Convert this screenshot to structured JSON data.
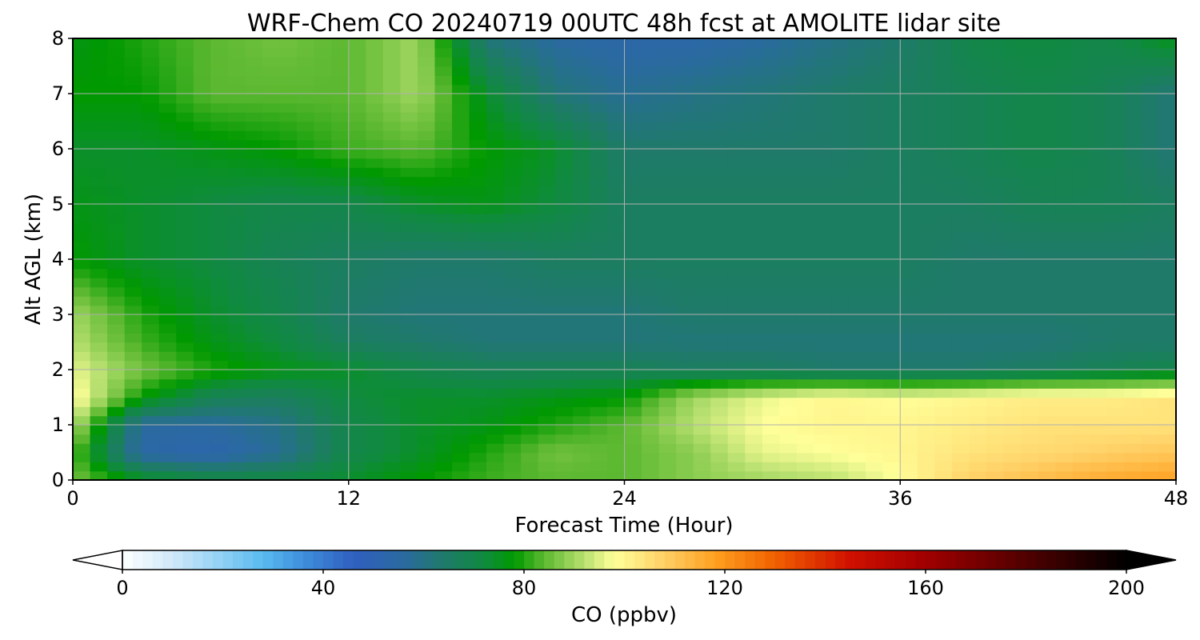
{
  "chart_data": {
    "type": "heatmap",
    "title": "WRF-Chem CO  20240719 00UTC 48h fcst at AMOLITE lidar site",
    "xlabel": "Forecast Time (Hour)",
    "ylabel": "Alt AGL (km)",
    "xlim": [
      0,
      48
    ],
    "ylim": [
      0,
      8
    ],
    "xticks": [
      0,
      12,
      24,
      36,
      48
    ],
    "yticks": [
      0,
      1,
      2,
      3,
      4,
      5,
      6,
      7,
      8
    ],
    "grid": true,
    "x": [
      0,
      3,
      6,
      9,
      12,
      15,
      18,
      21,
      24,
      27,
      30,
      33,
      36,
      39,
      42,
      45,
      48
    ],
    "y": [
      0,
      0.5,
      1,
      1.5,
      2,
      2.5,
      3,
      4,
      5,
      6,
      7,
      8
    ],
    "z": [
      [
        86,
        76,
        72,
        72,
        74,
        78,
        82,
        84,
        84,
        88,
        90,
        92,
        98,
        108,
        112,
        116,
        118
      ],
      [
        84,
        54,
        52,
        58,
        70,
        74,
        80,
        86,
        84,
        88,
        96,
        98,
        100,
        104,
        106,
        108,
        110
      ],
      [
        92,
        56,
        56,
        60,
        70,
        74,
        76,
        80,
        84,
        92,
        98,
        100,
        100,
        102,
        104,
        104,
        104
      ],
      [
        100,
        78,
        68,
        66,
        72,
        74,
        74,
        76,
        78,
        90,
        96,
        100,
        98,
        100,
        102,
        102,
        104
      ],
      [
        96,
        86,
        80,
        76,
        74,
        70,
        68,
        68,
        68,
        66,
        66,
        64,
        64,
        64,
        66,
        68,
        70
      ],
      [
        92,
        82,
        76,
        72,
        66,
        64,
        62,
        62,
        62,
        62,
        62,
        62,
        62,
        62,
        62,
        64,
        64
      ],
      [
        90,
        80,
        74,
        70,
        64,
        62,
        62,
        62,
        62,
        64,
        64,
        64,
        64,
        64,
        64,
        64,
        64
      ],
      [
        78,
        74,
        72,
        68,
        66,
        64,
        64,
        66,
        66,
        66,
        66,
        66,
        66,
        64,
        64,
        64,
        64
      ],
      [
        76,
        74,
        72,
        70,
        70,
        74,
        76,
        72,
        66,
        66,
        66,
        66,
        66,
        66,
        68,
        68,
        66
      ],
      [
        74,
        74,
        76,
        78,
        82,
        84,
        78,
        74,
        64,
        64,
        64,
        64,
        66,
        68,
        70,
        68,
        62
      ],
      [
        78,
        78,
        84,
        84,
        84,
        90,
        74,
        62,
        58,
        60,
        62,
        64,
        66,
        68,
        70,
        68,
        62
      ],
      [
        76,
        80,
        84,
        86,
        84,
        90,
        62,
        56,
        54,
        54,
        56,
        60,
        64,
        70,
        72,
        70,
        76
      ]
    ],
    "colorbar": {
      "label": "CO  (ppbv)",
      "min": 0,
      "max": 200,
      "ticks": [
        0,
        40,
        80,
        120,
        160,
        200
      ],
      "extend": "both",
      "stops": [
        {
          "value": 0,
          "color": "#ffffff"
        },
        {
          "value": 10,
          "color": "#cfe8f8"
        },
        {
          "value": 20,
          "color": "#8fd0f5"
        },
        {
          "value": 28,
          "color": "#58baee"
        },
        {
          "value": 36,
          "color": "#3f8fdc"
        },
        {
          "value": 46,
          "color": "#2f5fc0"
        },
        {
          "value": 56,
          "color": "#2a6aa0"
        },
        {
          "value": 64,
          "color": "#1f7a6a"
        },
        {
          "value": 72,
          "color": "#108a40"
        },
        {
          "value": 78,
          "color": "#009900"
        },
        {
          "value": 84,
          "color": "#5cb830"
        },
        {
          "value": 92,
          "color": "#b8e070"
        },
        {
          "value": 98,
          "color": "#ffff99"
        },
        {
          "value": 108,
          "color": "#ffd066"
        },
        {
          "value": 118,
          "color": "#ffa020"
        },
        {
          "value": 130,
          "color": "#f06000"
        },
        {
          "value": 145,
          "color": "#d01000"
        },
        {
          "value": 160,
          "color": "#a00000"
        },
        {
          "value": 180,
          "color": "#500000"
        },
        {
          "value": 200,
          "color": "#000000"
        }
      ]
    }
  }
}
